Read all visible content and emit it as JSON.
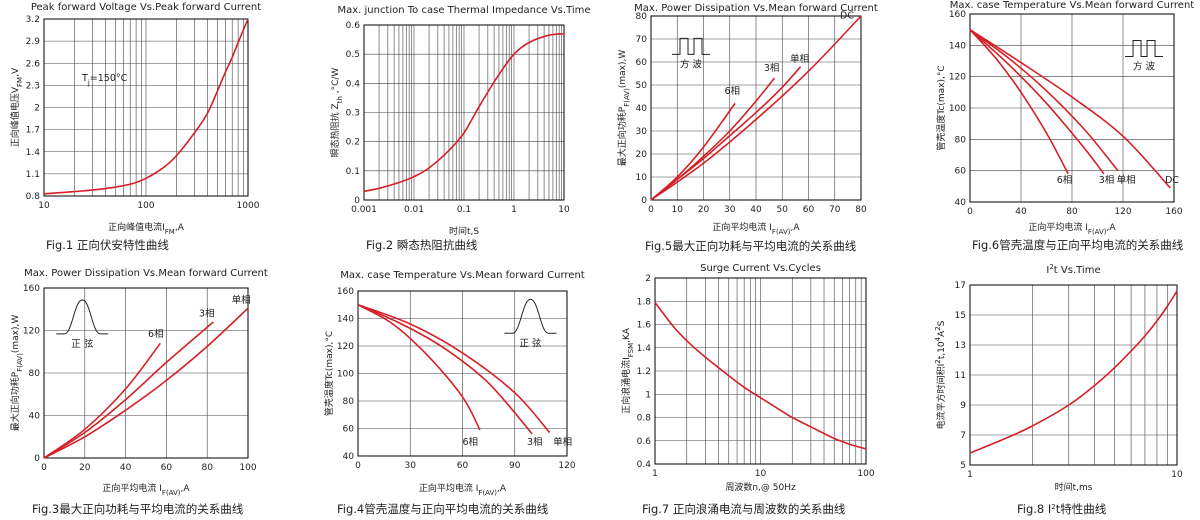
{
  "chart_data": [
    {
      "id": "fig1",
      "type": "line",
      "title": "Peak forward Voltage Vs.Peak forward Current",
      "caption": "Fig.1 正向伏安特性曲线",
      "xlabel": "正向峰值电流I",
      "xlabel_sub": "FM",
      "xlabel_tail": ",A",
      "ylabel": "正向峰值电压V",
      "ylabel_sub": "FM",
      "ylabel_tail": ",V",
      "xscale": "log",
      "xlim": [
        10,
        1000
      ],
      "xticks": [
        "10",
        "100",
        "1000"
      ],
      "ylim": [
        0.8,
        3.2
      ],
      "yticks": [
        "0.8",
        "1.1",
        "1.4",
        "1.7",
        "2",
        "2.3",
        "2.6",
        "2.9",
        "3.2"
      ],
      "annotation": "T",
      "annotation_sub": "j",
      "annotation_tail": "=150°C",
      "series": [
        {
          "x": [
            10,
            20,
            40,
            70,
            100,
            150,
            200,
            300,
            400,
            500,
            600,
            700,
            800,
            900,
            1000
          ],
          "y": [
            0.83,
            0.86,
            0.9,
            0.96,
            1.04,
            1.19,
            1.35,
            1.66,
            1.92,
            2.22,
            2.48,
            2.68,
            2.88,
            3.05,
            3.2
          ]
        }
      ]
    },
    {
      "id": "fig2",
      "type": "line",
      "title": "Max. junction To case Thermal Impedance Vs.Time",
      "caption": "Fig.2  瞬态热阻抗曲线",
      "xlabel": "时间t,S",
      "ylabel": "瞬态热阻抗 Z",
      "ylabel_sub": "th",
      "ylabel_tail": " ,°C/W",
      "xscale": "log",
      "xlim": [
        0.001,
        10
      ],
      "xticks": [
        "0.001",
        "0.01",
        "0.1",
        "1",
        "10"
      ],
      "ylim": [
        0,
        0.6
      ],
      "yticks": [
        "0",
        "0.1",
        "0.2",
        "0.3",
        "0.4",
        "0.5",
        "0.6"
      ],
      "series": [
        {
          "x": [
            0.001,
            0.002,
            0.005,
            0.01,
            0.02,
            0.05,
            0.1,
            0.2,
            0.5,
            1,
            2,
            5,
            10
          ],
          "y": [
            0.03,
            0.04,
            0.06,
            0.08,
            0.11,
            0.17,
            0.23,
            0.32,
            0.43,
            0.5,
            0.54,
            0.565,
            0.57
          ]
        }
      ]
    },
    {
      "id": "fig5",
      "type": "line",
      "title": "Max. Power Dissipation Vs.Mean forward Current",
      "caption": "Fig.5最大正向功耗与平均电流的关系曲线",
      "xlabel": "正向平均电流 I",
      "xlabel_sub": "F(AV)",
      "xlabel_tail": ",A",
      "ylabel": "最大正向功耗P",
      "ylabel_sub": "F(AV)",
      "ylabel_tail": "(max),W",
      "xlim": [
        0,
        80
      ],
      "xticks": [
        "0",
        "10",
        "20",
        "30",
        "40",
        "50",
        "60",
        "70",
        "80"
      ],
      "ylim": [
        0,
        80
      ],
      "yticks": [
        "0",
        "10",
        "20",
        "30",
        "40",
        "50",
        "60",
        "70",
        "80"
      ],
      "wave_label": "方    波",
      "series": [
        {
          "name": "6相",
          "x": [
            0,
            10,
            20,
            32
          ],
          "y": [
            0,
            10,
            23,
            42
          ]
        },
        {
          "name": "3相",
          "x": [
            0,
            10,
            20,
            30,
            40,
            47
          ],
          "y": [
            0,
            9,
            19,
            30,
            43,
            53
          ]
        },
        {
          "name": "单相",
          "x": [
            0,
            10,
            20,
            30,
            40,
            50,
            57
          ],
          "y": [
            0,
            9,
            18,
            28,
            38,
            49,
            58
          ]
        },
        {
          "name": "DC",
          "x": [
            0,
            20,
            40,
            60,
            80
          ],
          "y": [
            0,
            16,
            35,
            56,
            80
          ]
        }
      ]
    },
    {
      "id": "fig6",
      "type": "line",
      "title": "Max. case Temperature Vs.Mean forward Current",
      "caption": "Fig.6管壳温度与正向平均电流的关系曲线",
      "xlabel": "正向平均电流 I",
      "xlabel_sub": "F(AV)",
      "xlabel_tail": ",A",
      "ylabel": "管壳温度Tc(max),°C",
      "xlim": [
        0,
        160
      ],
      "xticks": [
        "0",
        "40",
        "80",
        "120",
        "160"
      ],
      "ylim": [
        40,
        160
      ],
      "yticks": [
        "40",
        "60",
        "80",
        "100",
        "120",
        "140",
        "160"
      ],
      "wave_label": "方    波",
      "series": [
        {
          "name": "6相",
          "x": [
            0,
            20,
            40,
            60,
            77
          ],
          "y": [
            150,
            132,
            110,
            84,
            58
          ]
        },
        {
          "name": "3相",
          "x": [
            0,
            30,
            60,
            90,
            105
          ],
          "y": [
            150,
            128,
            103,
            74,
            58
          ]
        },
        {
          "name": "单相",
          "x": [
            0,
            30,
            60,
            90,
            116
          ],
          "y": [
            150,
            132,
            111,
            86,
            60
          ]
        },
        {
          "name": "DC",
          "x": [
            0,
            40,
            80,
            120,
            157
          ],
          "y": [
            150,
            129,
            107,
            82,
            49
          ]
        }
      ]
    },
    {
      "id": "fig3",
      "type": "line",
      "title": "Max. Power Dissipation Vs.Mean forward Current",
      "caption": "Fig.3最大正向功耗与平均电流的关系曲线",
      "xlabel": "正向平均电流 I",
      "xlabel_sub": "F(AV)",
      "xlabel_tail": ",A",
      "ylabel": "最大正向功耗P",
      "ylabel_sub": "F(AV)",
      "ylabel_tail": "(max),W",
      "xlim": [
        0,
        100
      ],
      "xticks": [
        "0",
        "20",
        "40",
        "60",
        "80",
        "100"
      ],
      "ylim": [
        0,
        160
      ],
      "yticks": [
        "0",
        "40",
        "80",
        "120",
        "160"
      ],
      "wave_label": "正    弦",
      "series": [
        {
          "name": "6相",
          "x": [
            0,
            20,
            40,
            57
          ],
          "y": [
            0,
            27,
            65,
            108
          ]
        },
        {
          "name": "3相",
          "x": [
            0,
            20,
            40,
            60,
            83
          ],
          "y": [
            0,
            24,
            55,
            90,
            128
          ]
        },
        {
          "name": "单相",
          "x": [
            0,
            20,
            40,
            60,
            80,
            100
          ],
          "y": [
            0,
            20,
            45,
            73,
            105,
            141
          ]
        }
      ]
    },
    {
      "id": "fig4",
      "type": "line",
      "title": "Max. case Temperature Vs.Mean forward Current",
      "caption": "Fig.4管壳温度与正向平均电流的关系曲线",
      "xlabel": "正向平均电流 I",
      "xlabel_sub": "F(AV)",
      "xlabel_tail": ",A",
      "ylabel": "管壳温度Tc(max),°C",
      "xlim": [
        0,
        120
      ],
      "xticks": [
        "0",
        "30",
        "60",
        "90",
        "120"
      ],
      "ylim": [
        40,
        160
      ],
      "yticks": [
        "40",
        "60",
        "80",
        "100",
        "120",
        "140",
        "160"
      ],
      "wave_label": "正    弦",
      "series": [
        {
          "name": "6相",
          "x": [
            0,
            20,
            40,
            60,
            70
          ],
          "y": [
            150,
            136,
            113,
            83,
            59
          ]
        },
        {
          "name": "3相",
          "x": [
            0,
            25,
            50,
            75,
            100
          ],
          "y": [
            150,
            136,
            118,
            93,
            56
          ]
        },
        {
          "name": "单相",
          "x": [
            0,
            30,
            60,
            90,
            110
          ],
          "y": [
            150,
            136,
            115,
            86,
            57
          ]
        }
      ]
    },
    {
      "id": "fig7",
      "type": "line",
      "title": "Surge Current Vs.Cycles",
      "caption": "Fig.7 正向浪涌电流与周波数的关系曲线",
      "xlabel": "周波数n,@ 50Hz",
      "ylabel": "正向浪涌电流I",
      "ylabel_sub": "FSM",
      "ylabel_tail": ",KA",
      "xscale": "log",
      "xlim": [
        1,
        100
      ],
      "xticks": [
        "1",
        "10",
        "100"
      ],
      "ylim": [
        0.4,
        2.0
      ],
      "yticks": [
        "0.4",
        "0.6",
        "0.8",
        "1",
        "1.2",
        "1.4",
        "1.6",
        "1.8",
        "2"
      ],
      "series": [
        {
          "x": [
            1,
            1.5,
            2,
            3,
            5,
            7,
            10,
            15,
            20,
            30,
            50,
            70,
            100
          ],
          "y": [
            1.79,
            1.58,
            1.46,
            1.32,
            1.16,
            1.06,
            0.97,
            0.87,
            0.8,
            0.72,
            0.62,
            0.57,
            0.53
          ]
        }
      ]
    },
    {
      "id": "fig8",
      "type": "line",
      "title": "I",
      "title_sup": "2",
      "title_tail": "t  Vs.Time",
      "caption": "Fig.8 I",
      "caption_sup": "2",
      "caption_tail": "t特性曲线",
      "xlabel": "时间t,ms",
      "ylabel": "电流平方时间积I",
      "ylabel_sup": "2",
      "ylabel_tail": "t,10",
      "ylabel_sup2": "4",
      "ylabel_tail2": "A",
      "ylabel_sup3": "2",
      "ylabel_tail3": "S",
      "xscale": "log",
      "xlim": [
        1,
        10
      ],
      "xticks": [
        "1",
        "10"
      ],
      "ylim": [
        5,
        17
      ],
      "yticks": [
        "5",
        "7",
        "9",
        "11",
        "13",
        "15",
        "17"
      ],
      "series": [
        {
          "x": [
            1,
            1.5,
            2,
            3,
            4,
            5,
            6,
            7,
            8,
            9,
            10
          ],
          "y": [
            5.8,
            6.8,
            7.6,
            9.0,
            10.3,
            11.5,
            12.6,
            13.6,
            14.6,
            15.6,
            16.6
          ]
        }
      ]
    }
  ]
}
